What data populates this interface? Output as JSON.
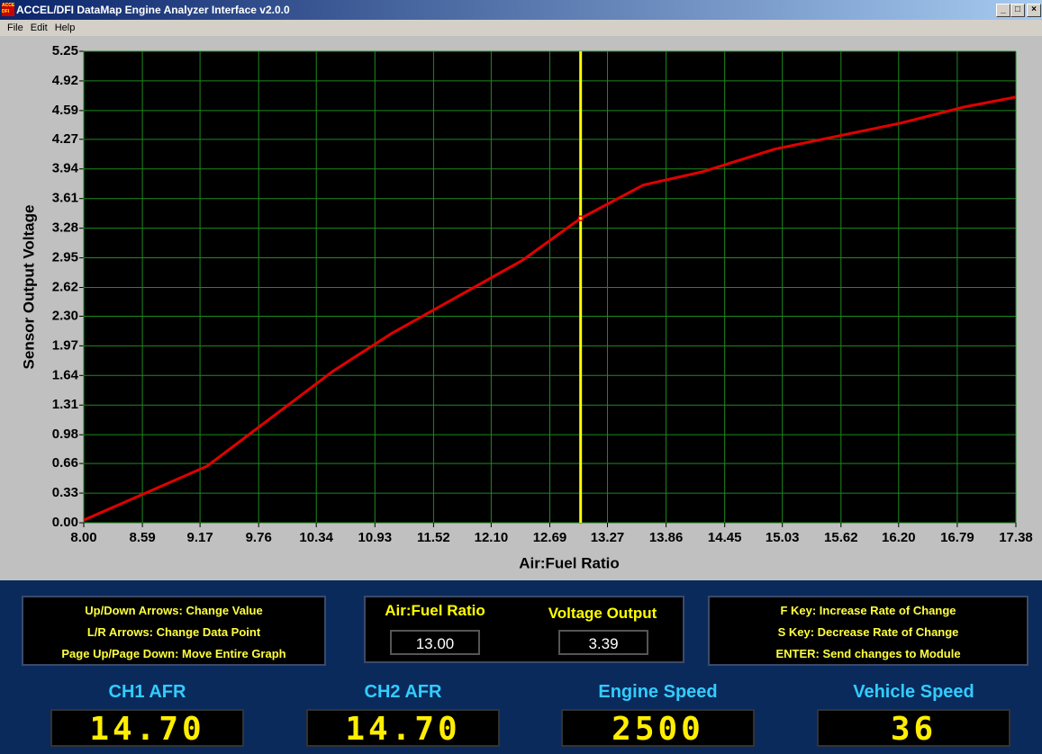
{
  "window": {
    "title": "ACCEL/DFI DataMap Engine Analyzer Interface v2.0.0",
    "logo": "ACCEL DFI",
    "menu": [
      "File",
      "Edit",
      "Help"
    ]
  },
  "chart_data": {
    "type": "line",
    "xlabel": "Air:Fuel Ratio",
    "ylabel": "Sensor Output Voltage",
    "x": [
      8.0,
      9.24,
      10.51,
      11.1,
      12.41,
      13.0,
      13.63,
      14.23,
      14.95,
      16.22,
      16.86,
      17.38
    ],
    "series": [
      {
        "color": "#e00000",
        "values": [
          0.03,
          0.63,
          1.69,
          2.11,
          2.92,
          3.39,
          3.76,
          3.91,
          4.16,
          4.45,
          4.63,
          4.74
        ]
      }
    ],
    "xlim": [
      8,
      17.38
    ],
    "xticks": [
      {
        "value": 8,
        "label": "8.00"
      },
      8.59,
      9.17,
      9.76,
      10.34,
      10.93,
      11.52,
      {
        "value": 12.1,
        "label": "12.10"
      },
      12.69,
      13.27,
      13.86,
      14.45,
      15.03,
      15.62,
      {
        "value": 16.2,
        "label": "16.20"
      },
      16.79,
      17.38
    ],
    "ylim": [
      0,
      5.25
    ],
    "yticks": [
      {
        "value": 0,
        "label": "0.00"
      },
      0.33,
      0.66,
      0.98,
      1.31,
      1.64,
      1.97,
      {
        "value": 2.3,
        "label": "2.30"
      },
      2.62,
      2.95,
      3.28,
      3.61,
      3.94,
      4.27,
      4.59,
      4.92,
      5.25
    ],
    "grid": true,
    "grid_color": "#1e8a1e",
    "background": "#000000",
    "cursor_x": 13.0,
    "cursor_color": "#ffff00"
  },
  "help_left": [
    "Up/Down Arrows:  Change Value",
    "L/R Arrows:  Change Data Point",
    "Page Up/Page Down:  Move Entire Graph"
  ],
  "readout": [
    {
      "label": "Air:Fuel Ratio",
      "value": "13.00"
    },
    {
      "label": "Voltage Output",
      "value": "3.39"
    }
  ],
  "help_right": [
    "F Key: Increase Rate of Change",
    "S Key: Decrease Rate of Change",
    "ENTER:  Send changes to Module"
  ],
  "gauges": [
    {
      "label": "CH1 AFR",
      "value": "14.70"
    },
    {
      "label": "CH2 AFR",
      "value": "14.70"
    },
    {
      "label": "Engine Speed",
      "value": "2500"
    },
    {
      "label": "Vehicle Speed",
      "value": "36"
    }
  ]
}
